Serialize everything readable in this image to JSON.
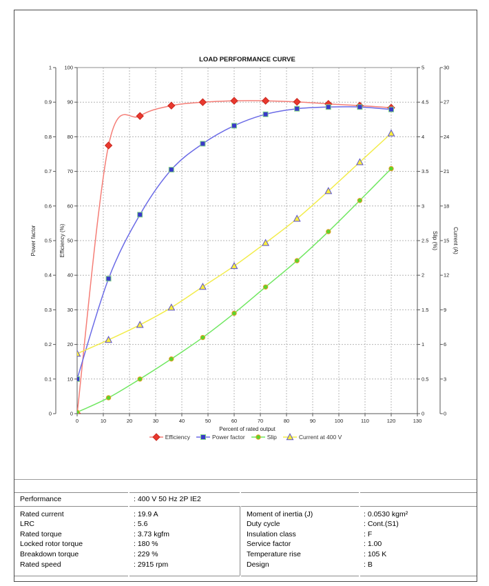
{
  "chart_data": {
    "type": "line",
    "title": "LOAD PERFORMANCE CURVE",
    "xlabel": "Percent of rated output",
    "x_axis": {
      "min": 0,
      "max": 130,
      "step": 10
    },
    "grid": true,
    "legend_position": "bottom",
    "axes": [
      {
        "id": "power_factor",
        "label": "Power factor",
        "side": "left",
        "min": 0,
        "max": 1,
        "step": 0.1
      },
      {
        "id": "efficiency",
        "label": "Efficiency (%)",
        "side": "left",
        "min": 0,
        "max": 100,
        "step": 10
      },
      {
        "id": "slip",
        "label": "Slip (%)",
        "side": "right",
        "min": 0,
        "max": 5,
        "step": 0.5
      },
      {
        "id": "current",
        "label": "Current (A)",
        "side": "right",
        "min": 0,
        "max": 30,
        "step": 3
      }
    ],
    "x": [
      0,
      12,
      24,
      36,
      48,
      60,
      72,
      84,
      96,
      108,
      120
    ],
    "series": [
      {
        "id": "efficiency",
        "name": "Efficiency",
        "axis": "efficiency",
        "marker": "diamond",
        "line_color": "#f57d76",
        "marker_fill": "#e8392f",
        "marker_stroke": "#c9261d",
        "values": [
          0,
          77.5,
          86.0,
          89.0,
          90.0,
          90.4,
          90.4,
          90.1,
          89.5,
          89.0,
          88.4
        ]
      },
      {
        "id": "power_factor",
        "name": "Power factor",
        "axis": "power_factor",
        "marker": "square",
        "line_color": "#6a6ae6",
        "marker_fill": "#3a3ac8",
        "marker_stroke": "#86d888",
        "values": [
          0.1,
          0.39,
          0.575,
          0.705,
          0.78,
          0.832,
          0.865,
          0.881,
          0.886,
          0.886,
          0.879
        ]
      },
      {
        "id": "slip",
        "name": "Slip",
        "axis": "slip",
        "marker": "circle",
        "line_color": "#6fe760",
        "marker_fill": "#59d62e",
        "marker_stroke": "#e89b22",
        "values": [
          0.02,
          0.23,
          0.5,
          0.79,
          1.1,
          1.45,
          1.83,
          2.21,
          2.63,
          3.08,
          3.54
        ]
      },
      {
        "id": "current",
        "name": "Current at 400 V",
        "axis": "current",
        "marker": "triangle",
        "line_color": "#f2ec4a",
        "marker_fill": "#f9ee3c",
        "marker_stroke": "#5a50cf",
        "values": [
          5.2,
          6.4,
          7.7,
          9.2,
          11.0,
          12.8,
          14.8,
          16.9,
          19.3,
          21.8,
          24.3
        ]
      }
    ]
  },
  "table": {
    "performance": {
      "label": "Performance",
      "value": ": 400 V 50 Hz 2P IE2"
    },
    "left_rows": [
      {
        "label": "Rated current",
        "value": ": 19.9 A"
      },
      {
        "label": "LRC",
        "value": ": 5.6"
      },
      {
        "label": "Rated torque",
        "value": ": 3.73 kgfm"
      },
      {
        "label": "Locked rotor torque",
        "value": ": 180 %"
      },
      {
        "label": "Breakdown torque",
        "value": ": 229 %"
      },
      {
        "label": "Rated speed",
        "value": ": 2915 rpm"
      }
    ],
    "right_rows": [
      {
        "label": "Moment of inertia (J)",
        "value": ": 0.0530 kgm²"
      },
      {
        "label": "Duty cycle",
        "value": ": Cont.(S1)"
      },
      {
        "label": "Insulation class",
        "value": ": F"
      },
      {
        "label": "Service factor",
        "value": ": 1.00"
      },
      {
        "label": "Temperature rise",
        "value": ": 105 K"
      },
      {
        "label": "Design",
        "value": ": B"
      }
    ]
  },
  "colors": {
    "grid": "#b4b4b4",
    "axis": "#555555",
    "plot_border": "#8c8c8c",
    "table_line": "#8a8a8a",
    "tick_text": "#222222"
  }
}
